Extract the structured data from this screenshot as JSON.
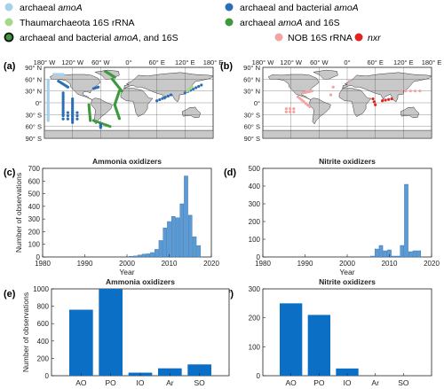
{
  "legend": {
    "items": [
      {
        "text": "archaeal ",
        "italic": "amoA",
        "color": "#a8d0e8"
      },
      {
        "text": "archaeal and bacterial ",
        "italic": "amoA",
        "color": "#2b6eb5"
      },
      {
        "text": "Thaumarchaeota 16S rRNA",
        "italic": "",
        "color": "#a6d88a"
      },
      {
        "text": "archaeal ",
        "italic": "amoA",
        "suffix": " and 16S",
        "color": "#3c9a3c"
      },
      {
        "text": "archaeal and bacterial ",
        "italic": "amoA",
        "suffix": ", and 16S",
        "color": "#3c9a3c",
        "ring": "#111111"
      },
      {
        "text": "NOB 16S rRNA",
        "italic": "",
        "color": "#f2a3a3"
      },
      {
        "text": "",
        "italic": "nxr",
        "color": "#e02424"
      }
    ]
  },
  "panels": {
    "a": "(a)",
    "b": "(b)",
    "c": "(c)",
    "d": "(d)",
    "e": "(e)",
    "f": "(f)"
  },
  "map": {
    "lon_ticks": [
      "180° W",
      "120° W",
      "60° W",
      "0°",
      "60° E",
      "120° E",
      "180° E"
    ],
    "lat_ticks": [
      "90° N",
      "60° N",
      "30° N",
      "0°",
      "30° S",
      "60° S",
      "90° S"
    ],
    "land_color": "#c8c8c8"
  },
  "chart_data": [
    {
      "type": "bar",
      "panel": "c",
      "title": "Ammonia oxidizers",
      "xlabel": "Year",
      "ylabel": "Number of observations",
      "xlim": [
        1980,
        2020
      ],
      "ylim": [
        0,
        700
      ],
      "xticks": [
        1980,
        1990,
        2000,
        2010,
        2020
      ],
      "yticks": [
        0,
        100,
        200,
        300,
        400,
        500,
        600,
        700
      ],
      "x": [
        2001,
        2002,
        2003,
        2004,
        2005,
        2006,
        2007,
        2008,
        2009,
        2010,
        2011,
        2012,
        2013,
        2014,
        2015,
        2016,
        2017
      ],
      "values": [
        5,
        8,
        15,
        22,
        25,
        35,
        60,
        130,
        230,
        280,
        320,
        310,
        420,
        640,
        330,
        160,
        90
      ],
      "color": "#5b9bd5"
    },
    {
      "type": "bar",
      "panel": "d",
      "title": "Nitrite oxidizers",
      "xlabel": "Year",
      "ylabel": "",
      "xlim": [
        1980,
        2020
      ],
      "ylim": [
        0,
        500
      ],
      "xticks": [
        1980,
        1990,
        2000,
        2010,
        2020
      ],
      "yticks": [
        0,
        100,
        200,
        300,
        400,
        500
      ],
      "x": [
        2006,
        2007,
        2008,
        2009,
        2010,
        2011,
        2012,
        2013,
        2014,
        2015,
        2016,
        2017
      ],
      "values": [
        5,
        45,
        65,
        35,
        40,
        5,
        5,
        65,
        410,
        30,
        35,
        35
      ],
      "color": "#5b9bd5"
    },
    {
      "type": "bar",
      "panel": "e",
      "title": "Ammonia oxidizers",
      "xlabel": "",
      "ylabel": "Number of observations",
      "ylim": [
        0,
        1000
      ],
      "yticks": [
        0,
        200,
        400,
        600,
        800,
        1000
      ],
      "categories": [
        "AO",
        "PO",
        "IO",
        "Ar",
        "SO"
      ],
      "values": [
        760,
        1000,
        35,
        85,
        130
      ],
      "color": "#0b6fc5"
    },
    {
      "type": "bar",
      "panel": "f",
      "title": "Nitrite oxidizers",
      "xlabel": "",
      "ylabel": "",
      "ylim": [
        0,
        300
      ],
      "yticks": [
        0,
        100,
        200,
        300
      ],
      "categories": [
        "AO",
        "PO",
        "IO",
        "Ar",
        "SO"
      ],
      "values": [
        250,
        210,
        25,
        0,
        0
      ],
      "color": "#0b6fc5"
    }
  ]
}
